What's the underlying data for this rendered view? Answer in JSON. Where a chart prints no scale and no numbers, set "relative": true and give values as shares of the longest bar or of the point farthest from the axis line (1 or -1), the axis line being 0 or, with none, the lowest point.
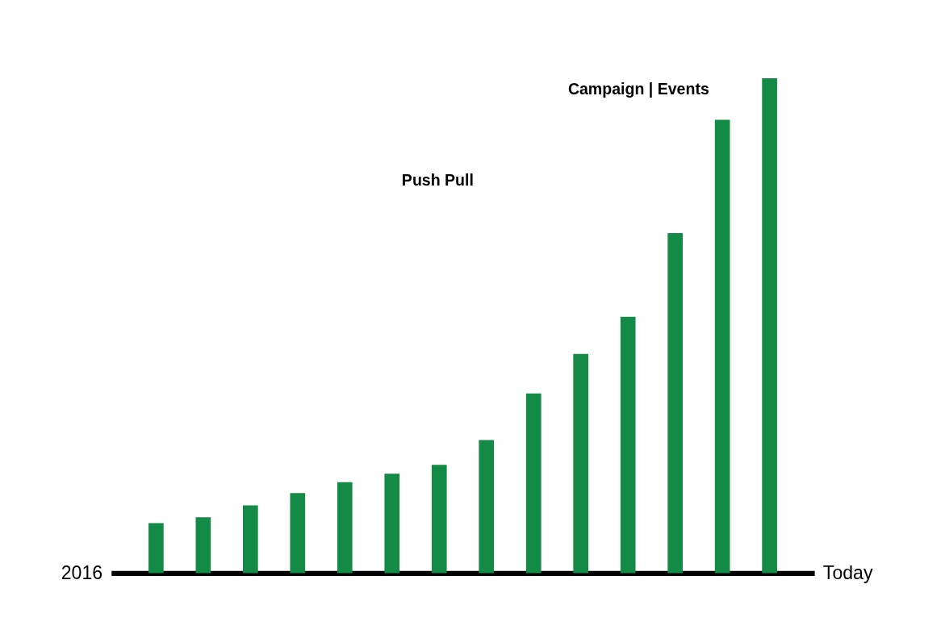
{
  "chart_data": {
    "type": "bar",
    "relative": true,
    "color": "#138a45",
    "categories": [
      null,
      null,
      null,
      null,
      null,
      null,
      null,
      null,
      null,
      null,
      null,
      null,
      null,
      null
    ],
    "values": [
      0.101,
      0.113,
      0.137,
      0.162,
      0.184,
      0.201,
      0.219,
      0.269,
      0.363,
      0.443,
      0.518,
      0.687,
      0.916,
      1.0
    ],
    "annotations": [
      "2016",
      "Today",
      "Push Pull",
      "Campaign | Events"
    ]
  }
}
